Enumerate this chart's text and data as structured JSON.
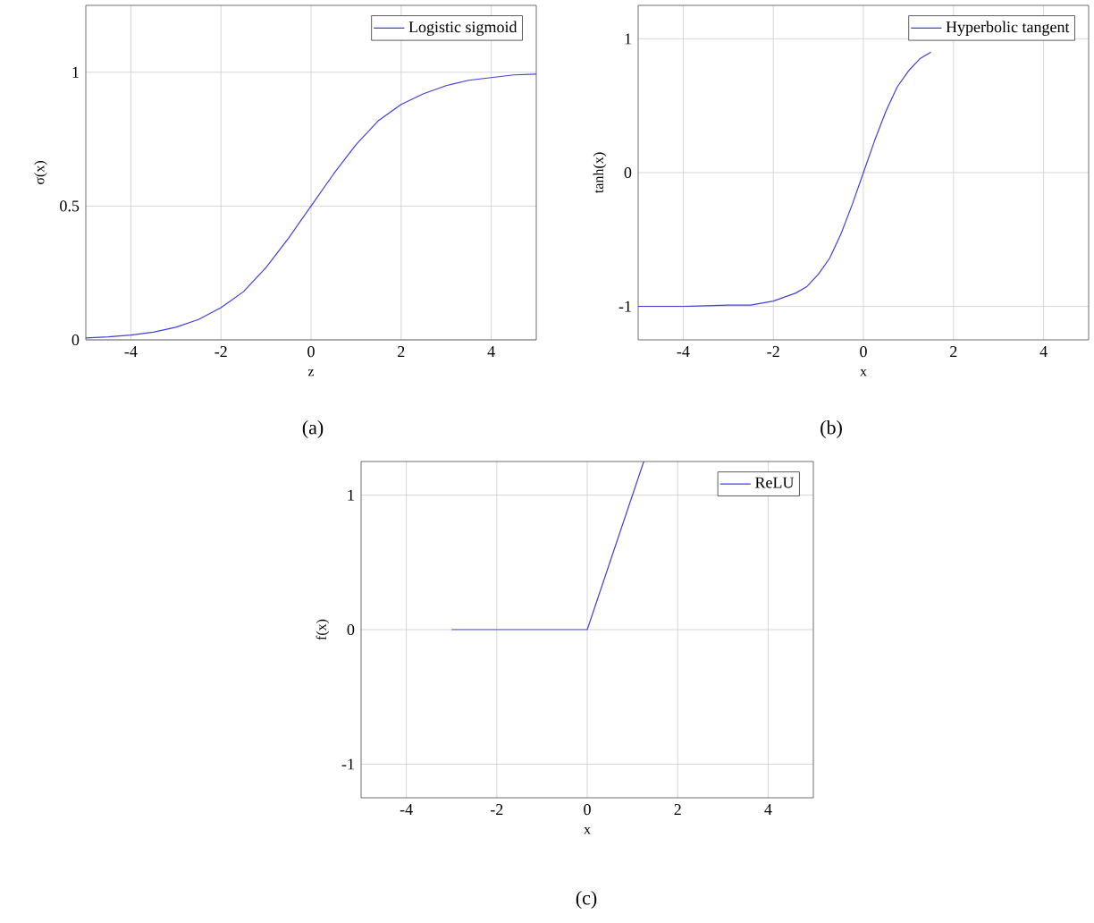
{
  "chart_data": [
    {
      "type": "line",
      "xlabel": "z",
      "ylabel": "σ(x)",
      "xlim": [
        -5,
        5
      ],
      "ylim": [
        0,
        1.25
      ],
      "xticks": [
        -4,
        -2,
        0,
        2,
        4
      ],
      "yticks": [
        0,
        0.5,
        1
      ],
      "grid": true,
      "legend": "top right",
      "annotations": [
        "(a)"
      ],
      "series": [
        {
          "name": "Logistic sigmoid",
          "color": "#4040d8",
          "x": [
            -5,
            -4.5,
            -4,
            -3.5,
            -3,
            -2.5,
            -2,
            -1.5,
            -1,
            -0.5,
            0,
            0.5,
            1,
            1.5,
            2,
            2.5,
            3,
            3.5,
            4,
            4.5,
            5
          ],
          "values": [
            0.007,
            0.011,
            0.018,
            0.029,
            0.047,
            0.076,
            0.12,
            0.18,
            0.27,
            0.38,
            0.5,
            0.62,
            0.73,
            0.82,
            0.88,
            0.92,
            0.95,
            0.97,
            0.98,
            0.99,
            0.993
          ]
        }
      ]
    },
    {
      "type": "line",
      "xlabel": "x",
      "ylabel": "tanh(x)",
      "xlim": [
        -5,
        5
      ],
      "ylim": [
        -1.25,
        1.25
      ],
      "xticks": [
        -4,
        -2,
        0,
        2,
        4
      ],
      "yticks": [
        -1,
        0,
        1
      ],
      "grid": true,
      "legend": "top right",
      "annotations": [
        "(b)"
      ],
      "series": [
        {
          "name": "Hyperbolic tangent",
          "color": "#4040d8",
          "x": [
            -5,
            -4,
            -3,
            -2.5,
            -2,
            -1.5,
            -1.25,
            -1,
            -0.75,
            -0.5,
            -0.25,
            0,
            0.25,
            0.5,
            0.75,
            1,
            1.25,
            1.5
          ],
          "values": [
            -1,
            -1,
            -0.99,
            -0.99,
            -0.96,
            -0.9,
            -0.85,
            -0.76,
            -0.64,
            -0.46,
            -0.24,
            0,
            0.24,
            0.46,
            0.64,
            0.76,
            0.85,
            0.9
          ]
        }
      ]
    },
    {
      "type": "line",
      "xlabel": "x",
      "ylabel": "f(x)",
      "xlim": [
        -5,
        5
      ],
      "ylim": [
        -1.25,
        1.25
      ],
      "xticks": [
        -4,
        -2,
        0,
        2,
        4
      ],
      "yticks": [
        -1,
        0,
        1
      ],
      "grid": true,
      "legend": "top right",
      "annotations": [
        "(c)"
      ],
      "series": [
        {
          "name": "ReLU",
          "color": "#4040d8",
          "x": [
            -3,
            0,
            1.25
          ],
          "values": [
            0,
            0,
            1.25
          ]
        }
      ]
    }
  ]
}
